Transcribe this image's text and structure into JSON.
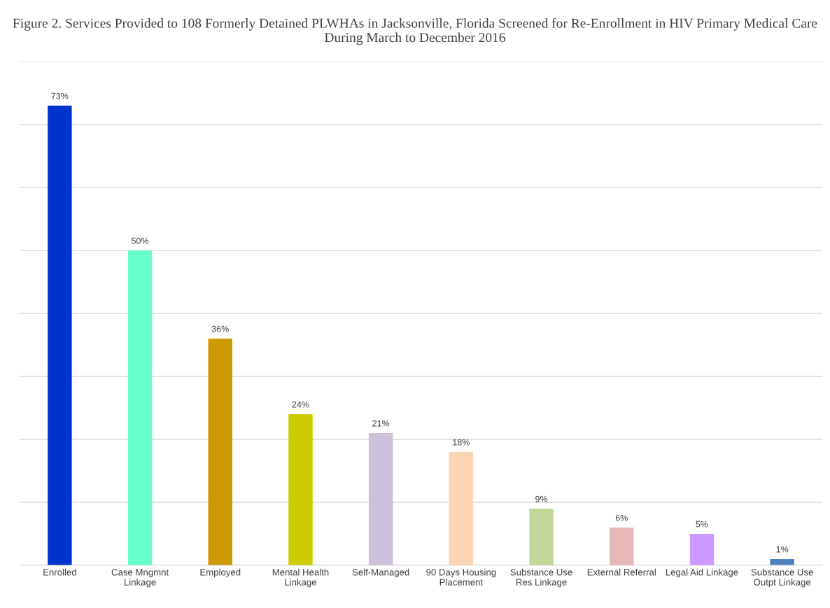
{
  "chart_data": {
    "type": "bar",
    "title": "Figure 2. Services Provided to 108 Formerly Detained PLWHAs in Jacksonville, Florida Screened for Re-Enrollment in HIV Primary Medical Care During March to December 2016",
    "categories": [
      "Enrolled",
      "Case Mngmnt\nLinkage",
      "Employed",
      "Mental Health\nLinkage",
      "Self-Managed",
      "90 Days Housing\nPlacement",
      "Substance Use\nRes Linkage",
      "External Referral",
      "Legal Aid Linkage",
      "Substance Use\nOutpt Linkage"
    ],
    "values": [
      73,
      50,
      36,
      24,
      21,
      18,
      9,
      6,
      5,
      1
    ],
    "value_labels": [
      "73%",
      "50%",
      "36%",
      "24%",
      "21%",
      "18%",
      "9%",
      "6%",
      "5%",
      "1%"
    ],
    "colors": [
      "#0033cc",
      "#66ffcc",
      "#cc9900",
      "#cccc00",
      "#ccc0da",
      "#fcd5b4",
      "#c4d79b",
      "#e6b8b7",
      "#cc99ff",
      "#4f81bd"
    ],
    "ylim": [
      0,
      80
    ],
    "yticks": [
      {
        "value": 0,
        "label": null
      },
      {
        "value": 10,
        "label": null
      },
      {
        "value": 20,
        "label": null
      },
      {
        "value": 30,
        "label": null
      },
      {
        "value": 40,
        "label": null
      },
      {
        "value": 50,
        "label": null
      },
      {
        "value": 60,
        "label": null
      },
      {
        "value": 70,
        "label": null
      },
      {
        "value": 80,
        "label": null
      }
    ],
    "grid": "y",
    "tick_labels": "x"
  }
}
